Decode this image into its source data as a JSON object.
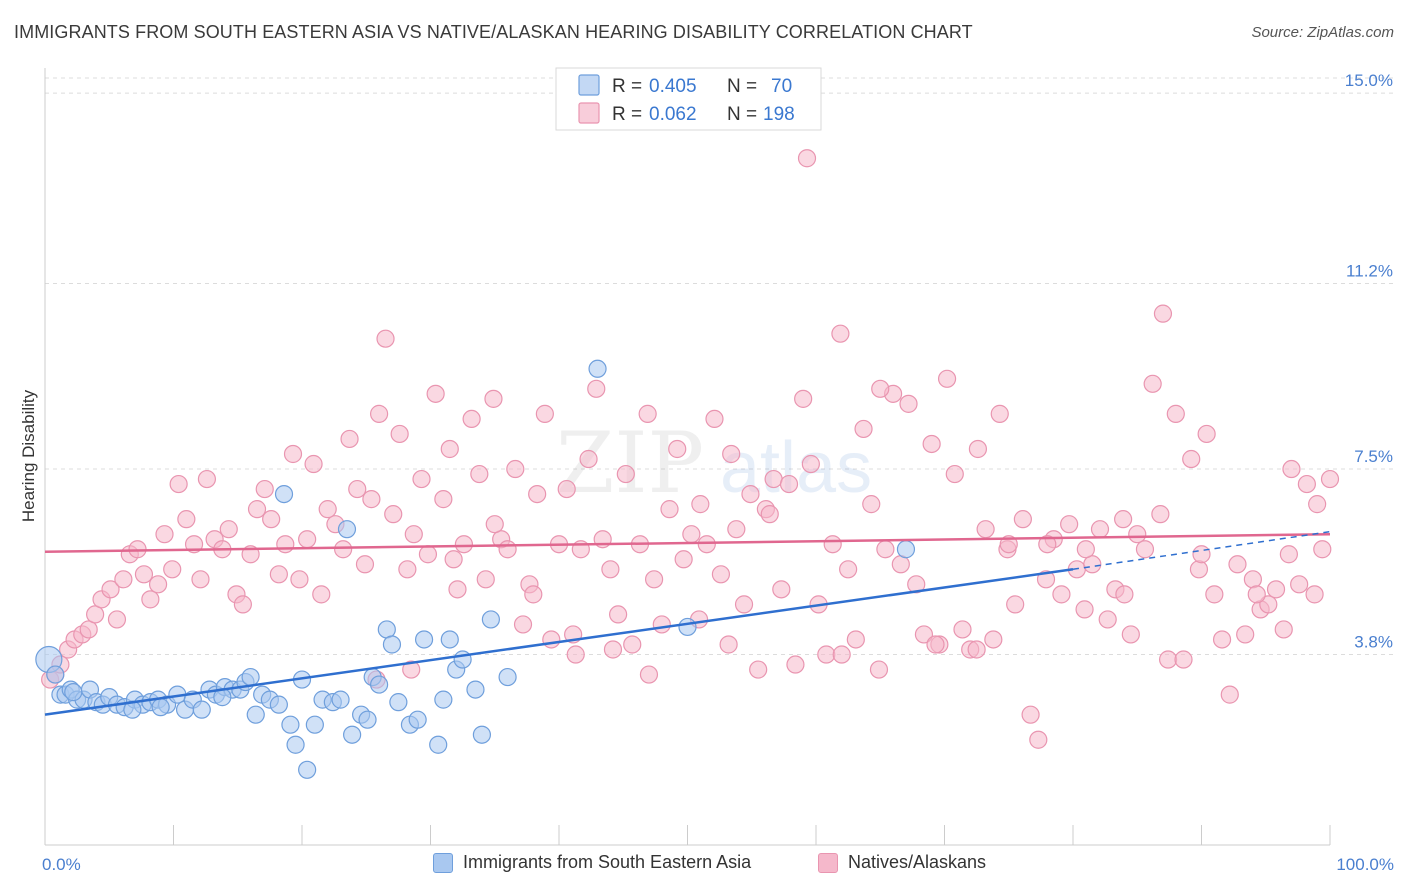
{
  "title": "IMMIGRANTS FROM SOUTH EASTERN ASIA VS NATIVE/ALASKAN HEARING DISABILITY CORRELATION CHART",
  "source": "Source: ZipAtlas.com",
  "watermark": {
    "zip": "ZIP",
    "atlas": "atlas"
  },
  "colors": {
    "blue_fill": "#a9c8f0",
    "blue_stroke": "#6f9fdc",
    "blue_line": "#2f6fcf",
    "pink_fill": "#f5b8cb",
    "pink_stroke": "#e995b0",
    "pink_line": "#e0678f",
    "grid": "#dcdcdc",
    "tick_label": "#4a7fcf"
  },
  "legend": {
    "rows": [
      {
        "r_label": "R =",
        "r_value": "0.405",
        "n_label": "N =",
        "n_value": "70"
      },
      {
        "r_label": "R =",
        "r_value": "0.062",
        "n_label": "N =",
        "n_value": "198"
      }
    ]
  },
  "chart_data": {
    "type": "scatter",
    "title": "IMMIGRANTS FROM SOUTH EASTERN ASIA VS NATIVE/ALASKAN HEARING DISABILITY CORRELATION CHART",
    "xlabel": "",
    "ylabel": "Hearing Disability",
    "xlim": [
      0,
      100
    ],
    "ylim": [
      0,
      15.5
    ],
    "x_tick_labels": [
      "0.0%",
      "100.0%"
    ],
    "y_ticks": [
      3.8,
      7.5,
      11.2,
      15.0
    ],
    "y_tick_labels": [
      "3.8%",
      "7.5%",
      "11.2%",
      "15.0%"
    ],
    "grid": true,
    "legend_position": "top-center",
    "series": [
      {
        "name": "Immigrants from South Eastern Asia",
        "color": "#6f9fdc",
        "r": 0.405,
        "n": 70,
        "trend": {
          "x": [
            0,
            80
          ],
          "y": [
            2.6,
            5.5
          ],
          "dashed_extension_to_x": 100,
          "dashed_end_y": 6.25
        },
        "points": [
          [
            0.3,
            3.7
          ],
          [
            0.8,
            3.4
          ],
          [
            1.2,
            3.0
          ],
          [
            1.6,
            3.0
          ],
          [
            2.0,
            3.1
          ],
          [
            2.5,
            2.9
          ],
          [
            3.0,
            2.9
          ],
          [
            3.5,
            3.1
          ],
          [
            4.0,
            2.85
          ],
          [
            4.5,
            2.8
          ],
          [
            5.0,
            2.95
          ],
          [
            5.6,
            2.8
          ],
          [
            6.2,
            2.75
          ],
          [
            7.0,
            2.9
          ],
          [
            7.6,
            2.8
          ],
          [
            8.2,
            2.85
          ],
          [
            8.8,
            2.9
          ],
          [
            9.5,
            2.8
          ],
          [
            10.3,
            3.0
          ],
          [
            10.9,
            2.7
          ],
          [
            11.5,
            2.9
          ],
          [
            12.2,
            2.7
          ],
          [
            12.8,
            3.1
          ],
          [
            13.3,
            3.0
          ],
          [
            14.0,
            3.15
          ],
          [
            14.6,
            3.1
          ],
          [
            15.2,
            3.1
          ],
          [
            15.6,
            3.25
          ],
          [
            16.0,
            3.35
          ],
          [
            16.4,
            2.6
          ],
          [
            16.9,
            3.0
          ],
          [
            17.5,
            2.9
          ],
          [
            18.2,
            2.8
          ],
          [
            18.6,
            7.0
          ],
          [
            19.1,
            2.4
          ],
          [
            19.5,
            2.0
          ],
          [
            20.0,
            3.3
          ],
          [
            20.4,
            1.5
          ],
          [
            21.0,
            2.4
          ],
          [
            21.6,
            2.9
          ],
          [
            22.4,
            2.85
          ],
          [
            23.0,
            2.9
          ],
          [
            23.5,
            6.3
          ],
          [
            23.9,
            2.2
          ],
          [
            24.6,
            2.6
          ],
          [
            25.1,
            2.5
          ],
          [
            25.5,
            3.35
          ],
          [
            26.0,
            3.2
          ],
          [
            26.6,
            4.3
          ],
          [
            27.0,
            4.0
          ],
          [
            27.5,
            2.85
          ],
          [
            28.4,
            2.4
          ],
          [
            29.0,
            2.5
          ],
          [
            29.5,
            4.1
          ],
          [
            30.6,
            2.0
          ],
          [
            31.0,
            2.9
          ],
          [
            31.5,
            4.1
          ],
          [
            32.0,
            3.5
          ],
          [
            32.5,
            3.7
          ],
          [
            33.5,
            3.1
          ],
          [
            34.0,
            2.2
          ],
          [
            34.7,
            4.5
          ],
          [
            36.0,
            3.35
          ],
          [
            43.0,
            9.5
          ],
          [
            50.0,
            4.35
          ],
          [
            67.0,
            5.9
          ],
          [
            2.2,
            3.05
          ],
          [
            6.8,
            2.7
          ],
          [
            9.0,
            2.75
          ],
          [
            13.8,
            2.95
          ]
        ]
      },
      {
        "name": "Natives/Alaskans",
        "color": "#e995b0",
        "r": 0.062,
        "n": 198,
        "trend": {
          "x": [
            0,
            100
          ],
          "y": [
            5.85,
            6.2
          ]
        },
        "points": [
          [
            0.4,
            3.3
          ],
          [
            0.8,
            3.4
          ],
          [
            1.2,
            3.6
          ],
          [
            1.8,
            3.9
          ],
          [
            2.3,
            4.1
          ],
          [
            2.9,
            4.2
          ],
          [
            3.4,
            4.3
          ],
          [
            3.9,
            4.6
          ],
          [
            4.4,
            4.9
          ],
          [
            5.1,
            5.1
          ],
          [
            5.6,
            4.5
          ],
          [
            6.1,
            5.3
          ],
          [
            6.6,
            5.8
          ],
          [
            7.2,
            5.9
          ],
          [
            7.7,
            5.4
          ],
          [
            8.2,
            4.9
          ],
          [
            8.8,
            5.2
          ],
          [
            9.3,
            6.2
          ],
          [
            9.9,
            5.5
          ],
          [
            10.4,
            7.2
          ],
          [
            11.0,
            6.5
          ],
          [
            11.6,
            6.0
          ],
          [
            12.1,
            5.3
          ],
          [
            12.6,
            7.3
          ],
          [
            13.2,
            6.1
          ],
          [
            13.8,
            5.9
          ],
          [
            14.3,
            6.3
          ],
          [
            14.9,
            5.0
          ],
          [
            15.4,
            4.8
          ],
          [
            16.0,
            5.8
          ],
          [
            16.5,
            6.7
          ],
          [
            17.1,
            7.1
          ],
          [
            17.6,
            6.5
          ],
          [
            18.2,
            5.4
          ],
          [
            18.7,
            6.0
          ],
          [
            19.3,
            7.8
          ],
          [
            19.8,
            5.3
          ],
          [
            20.4,
            6.1
          ],
          [
            20.9,
            7.6
          ],
          [
            21.5,
            5.0
          ],
          [
            22.0,
            6.7
          ],
          [
            22.6,
            6.4
          ],
          [
            23.2,
            5.9
          ],
          [
            23.7,
            8.1
          ],
          [
            24.3,
            7.1
          ],
          [
            24.9,
            5.6
          ],
          [
            25.4,
            6.9
          ],
          [
            26.0,
            8.6
          ],
          [
            26.5,
            10.1
          ],
          [
            27.1,
            6.6
          ],
          [
            27.6,
            8.2
          ],
          [
            28.2,
            5.5
          ],
          [
            28.7,
            6.2
          ],
          [
            29.3,
            7.3
          ],
          [
            29.8,
            5.8
          ],
          [
            30.4,
            9.0
          ],
          [
            31.0,
            6.9
          ],
          [
            31.5,
            7.9
          ],
          [
            32.1,
            5.1
          ],
          [
            32.6,
            6.0
          ],
          [
            33.2,
            8.5
          ],
          [
            33.8,
            7.4
          ],
          [
            34.3,
            5.3
          ],
          [
            34.9,
            8.9
          ],
          [
            35.5,
            6.1
          ],
          [
            36.0,
            5.9
          ],
          [
            36.6,
            7.5
          ],
          [
            37.2,
            4.4
          ],
          [
            37.7,
            5.2
          ],
          [
            38.3,
            7.0
          ],
          [
            38.9,
            8.6
          ],
          [
            39.4,
            4.1
          ],
          [
            40.0,
            6.0
          ],
          [
            40.6,
            7.1
          ],
          [
            41.1,
            4.2
          ],
          [
            41.7,
            5.9
          ],
          [
            42.3,
            7.7
          ],
          [
            42.9,
            9.1
          ],
          [
            43.4,
            6.1
          ],
          [
            44.0,
            5.5
          ],
          [
            44.6,
            4.6
          ],
          [
            45.2,
            7.4
          ],
          [
            45.7,
            4.0
          ],
          [
            46.3,
            6.0
          ],
          [
            46.9,
            8.6
          ],
          [
            47.4,
            5.3
          ],
          [
            48.0,
            4.4
          ],
          [
            48.6,
            6.7
          ],
          [
            49.2,
            7.9
          ],
          [
            49.7,
            5.7
          ],
          [
            50.3,
            6.2
          ],
          [
            50.9,
            4.5
          ],
          [
            51.5,
            6.0
          ],
          [
            52.1,
            8.5
          ],
          [
            52.6,
            5.4
          ],
          [
            53.2,
            4.0
          ],
          [
            53.8,
            6.3
          ],
          [
            54.4,
            4.8
          ],
          [
            54.9,
            7.0
          ],
          [
            55.5,
            3.5
          ],
          [
            56.1,
            6.7
          ],
          [
            56.7,
            7.3
          ],
          [
            57.3,
            5.1
          ],
          [
            57.9,
            7.2
          ],
          [
            58.4,
            3.6
          ],
          [
            59.0,
            8.9
          ],
          [
            59.6,
            7.6
          ],
          [
            60.2,
            4.8
          ],
          [
            60.8,
            3.8
          ],
          [
            61.3,
            6.0
          ],
          [
            61.9,
            10.2
          ],
          [
            62.5,
            5.5
          ],
          [
            63.1,
            4.1
          ],
          [
            63.7,
            8.3
          ],
          [
            64.3,
            6.8
          ],
          [
            64.9,
            3.5
          ],
          [
            65.4,
            5.9
          ],
          [
            66.0,
            9.0
          ],
          [
            66.6,
            5.6
          ],
          [
            67.2,
            8.8
          ],
          [
            67.8,
            5.2
          ],
          [
            68.4,
            4.2
          ],
          [
            69.0,
            8.0
          ],
          [
            69.6,
            4.0
          ],
          [
            70.2,
            9.3
          ],
          [
            70.8,
            7.4
          ],
          [
            71.4,
            4.3
          ],
          [
            72.0,
            3.9
          ],
          [
            72.6,
            7.9
          ],
          [
            73.2,
            6.3
          ],
          [
            73.8,
            4.1
          ],
          [
            74.3,
            8.6
          ],
          [
            74.9,
            5.9
          ],
          [
            75.5,
            4.8
          ],
          [
            76.1,
            6.5
          ],
          [
            76.7,
            2.6
          ],
          [
            77.3,
            2.1
          ],
          [
            77.9,
            5.3
          ],
          [
            78.5,
            6.1
          ],
          [
            79.1,
            5.0
          ],
          [
            79.7,
            6.4
          ],
          [
            80.3,
            5.5
          ],
          [
            80.9,
            4.7
          ],
          [
            81.5,
            5.6
          ],
          [
            82.1,
            6.3
          ],
          [
            82.7,
            4.5
          ],
          [
            83.3,
            5.1
          ],
          [
            83.9,
            6.5
          ],
          [
            84.5,
            4.2
          ],
          [
            85.0,
            6.2
          ],
          [
            85.6,
            5.9
          ],
          [
            86.2,
            9.2
          ],
          [
            86.8,
            6.6
          ],
          [
            87.4,
            3.7
          ],
          [
            88.0,
            8.6
          ],
          [
            88.6,
            3.7
          ],
          [
            89.2,
            7.7
          ],
          [
            89.8,
            5.5
          ],
          [
            90.4,
            8.2
          ],
          [
            91.0,
            5.0
          ],
          [
            91.6,
            4.1
          ],
          [
            92.2,
            3.0
          ],
          [
            92.8,
            5.6
          ],
          [
            93.4,
            4.2
          ],
          [
            94.0,
            5.3
          ],
          [
            94.6,
            4.7
          ],
          [
            95.2,
            4.8
          ],
          [
            95.8,
            5.1
          ],
          [
            96.4,
            4.3
          ],
          [
            97.0,
            7.5
          ],
          [
            97.6,
            5.2
          ],
          [
            98.2,
            7.2
          ],
          [
            98.8,
            5.0
          ],
          [
            99.4,
            5.9
          ],
          [
            100.0,
            7.3
          ],
          [
            99.0,
            6.8
          ],
          [
            96.8,
            5.8
          ],
          [
            94.3,
            5.0
          ],
          [
            90.0,
            5.8
          ],
          [
            87.0,
            10.6
          ],
          [
            84.0,
            5.0
          ],
          [
            81.0,
            5.9
          ],
          [
            78.0,
            6.0
          ],
          [
            75.0,
            6.0
          ],
          [
            72.5,
            3.9
          ],
          [
            69.3,
            4.0
          ],
          [
            65.0,
            9.1
          ],
          [
            62.0,
            3.8
          ],
          [
            59.3,
            13.7
          ],
          [
            56.4,
            6.6
          ],
          [
            53.4,
            7.8
          ],
          [
            51.0,
            6.8
          ],
          [
            47.0,
            3.4
          ],
          [
            44.2,
            3.9
          ],
          [
            41.3,
            3.8
          ],
          [
            38.0,
            5.0
          ],
          [
            35.0,
            6.4
          ],
          [
            31.8,
            5.7
          ],
          [
            28.5,
            3.5
          ],
          [
            25.8,
            3.3
          ]
        ]
      }
    ]
  },
  "bottom_legend": [
    {
      "label": "Immigrants from South Eastern Asia"
    },
    {
      "label": "Natives/Alaskans"
    }
  ]
}
